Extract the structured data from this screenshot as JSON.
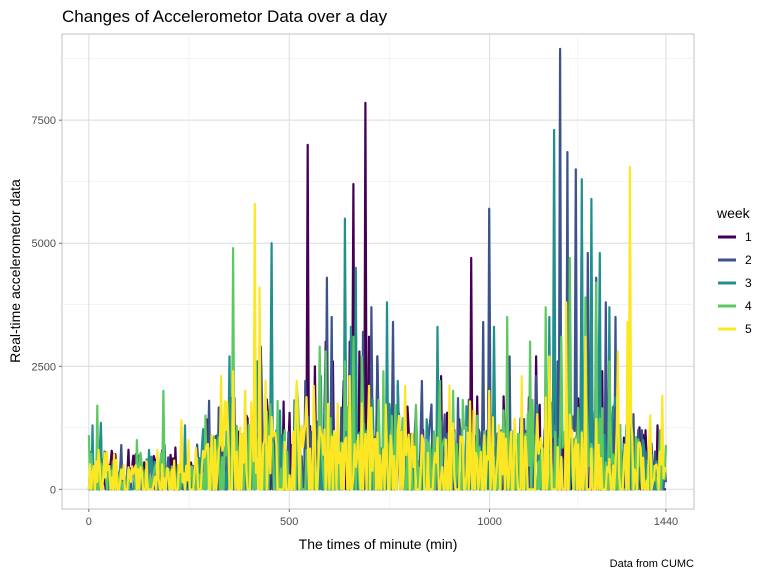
{
  "chart_data": {
    "type": "line",
    "title": "Changes of Accelerometor Data over a day",
    "xlabel": "The times of minute (min)",
    "ylabel": "Real-time accelerometor data",
    "caption": "Data from CUMC",
    "xlim": [
      -67,
      1510
    ],
    "ylim": [
      -400,
      9250
    ],
    "x_ticks": [
      0,
      500,
      1000,
      1440
    ],
    "x_tick_labels": [
      "0",
      "500",
      "1000",
      "1440"
    ],
    "y_ticks": [
      0,
      2500,
      5000,
      7500
    ],
    "y_tick_labels": [
      "0",
      "2500",
      "5000",
      "7500"
    ],
    "grid": true,
    "legend": {
      "title": "week",
      "position": "right"
    },
    "series": [
      {
        "name": "1",
        "color": "#440154",
        "peaks": [
          [
            205,
            700
          ],
          [
            215,
            850
          ],
          [
            300,
            700
          ],
          [
            360,
            1700
          ],
          [
            545,
            7000
          ],
          [
            565,
            2500
          ],
          [
            590,
            3000
          ],
          [
            610,
            2600
          ],
          [
            635,
            2200
          ],
          [
            650,
            3000
          ],
          [
            660,
            6200
          ],
          [
            675,
            2800
          ],
          [
            690,
            7850
          ],
          [
            700,
            3100
          ],
          [
            720,
            2700
          ],
          [
            770,
            2100
          ],
          [
            880,
            2300
          ],
          [
            955,
            4700
          ],
          [
            1000,
            3100
          ],
          [
            1115,
            2700
          ],
          [
            1160,
            2900
          ],
          [
            1280,
            2400
          ],
          [
            1390,
            1200
          ],
          [
            1420,
            1300
          ]
        ]
      },
      {
        "name": "2",
        "color": "#3b528b",
        "peaks": [
          [
            30,
            1200
          ],
          [
            80,
            900
          ],
          [
            190,
            900
          ],
          [
            230,
            1100
          ],
          [
            300,
            1800
          ],
          [
            430,
            2900
          ],
          [
            540,
            2200
          ],
          [
            595,
            4300
          ],
          [
            605,
            3500
          ],
          [
            685,
            3200
          ],
          [
            705,
            3700
          ],
          [
            720,
            2700
          ],
          [
            760,
            3400
          ],
          [
            830,
            2200
          ],
          [
            985,
            3400
          ],
          [
            1000,
            5700
          ],
          [
            1050,
            2700
          ],
          [
            1115,
            2300
          ],
          [
            1170,
            2600
          ],
          [
            1175,
            8950
          ],
          [
            1195,
            6850
          ],
          [
            1215,
            6500
          ],
          [
            1230,
            5800
          ],
          [
            1245,
            4800
          ],
          [
            1265,
            4300
          ],
          [
            1290,
            3800
          ],
          [
            1315,
            3500
          ],
          [
            1380,
            1200
          ],
          [
            1430,
            900
          ]
        ]
      },
      {
        "name": "3",
        "color": "#21908c",
        "peaks": [
          [
            10,
            1300
          ],
          [
            30,
            1350
          ],
          [
            150,
            800
          ],
          [
            240,
            1300
          ],
          [
            350,
            2700
          ],
          [
            420,
            2600
          ],
          [
            455,
            5000
          ],
          [
            580,
            2300
          ],
          [
            640,
            5500
          ],
          [
            655,
            3300
          ],
          [
            665,
            4500
          ],
          [
            745,
            3800
          ],
          [
            770,
            2200
          ],
          [
            870,
            3300
          ],
          [
            1010,
            3300
          ],
          [
            1150,
            3500
          ],
          [
            1160,
            7300
          ],
          [
            1230,
            6300
          ],
          [
            1255,
            5900
          ],
          [
            1275,
            4800
          ],
          [
            1300,
            3700
          ],
          [
            1340,
            1300
          ]
        ]
      },
      {
        "name": "4",
        "color": "#5ec962",
        "peaks": [
          [
            0,
            1100
          ],
          [
            20,
            1700
          ],
          [
            120,
            1000
          ],
          [
            185,
            2000
          ],
          [
            290,
            1500
          ],
          [
            360,
            4900
          ],
          [
            390,
            2000
          ],
          [
            520,
            2100
          ],
          [
            575,
            2900
          ],
          [
            590,
            2800
          ],
          [
            640,
            2600
          ],
          [
            660,
            3100
          ],
          [
            680,
            2700
          ],
          [
            735,
            2400
          ],
          [
            875,
            2200
          ],
          [
            910,
            2000
          ],
          [
            1045,
            3500
          ],
          [
            1100,
            3000
          ],
          [
            1140,
            3700
          ],
          [
            1180,
            3100
          ],
          [
            1200,
            4700
          ],
          [
            1240,
            3900
          ],
          [
            1265,
            4200
          ],
          [
            1300,
            2600
          ],
          [
            1425,
            1200
          ],
          [
            1440,
            900
          ]
        ]
      },
      {
        "name": "5",
        "color": "#fde725",
        "peaks": [
          [
            25,
            800
          ],
          [
            70,
            600
          ],
          [
            170,
            800
          ],
          [
            230,
            1400
          ],
          [
            250,
            1000
          ],
          [
            330,
            2300
          ],
          [
            360,
            2400
          ],
          [
            390,
            2000
          ],
          [
            415,
            5800
          ],
          [
            425,
            4100
          ],
          [
            440,
            2200
          ],
          [
            520,
            2200
          ],
          [
            560,
            2100
          ],
          [
            650,
            2300
          ],
          [
            700,
            2100
          ],
          [
            790,
            2100
          ],
          [
            900,
            2100
          ],
          [
            1000,
            2000
          ],
          [
            1080,
            2300
          ],
          [
            1150,
            2700
          ],
          [
            1190,
            3800
          ],
          [
            1240,
            3100
          ],
          [
            1320,
            2800
          ],
          [
            1345,
            3400
          ],
          [
            1350,
            6550
          ],
          [
            1400,
            1500
          ],
          [
            1430,
            1900
          ]
        ]
      }
    ]
  }
}
